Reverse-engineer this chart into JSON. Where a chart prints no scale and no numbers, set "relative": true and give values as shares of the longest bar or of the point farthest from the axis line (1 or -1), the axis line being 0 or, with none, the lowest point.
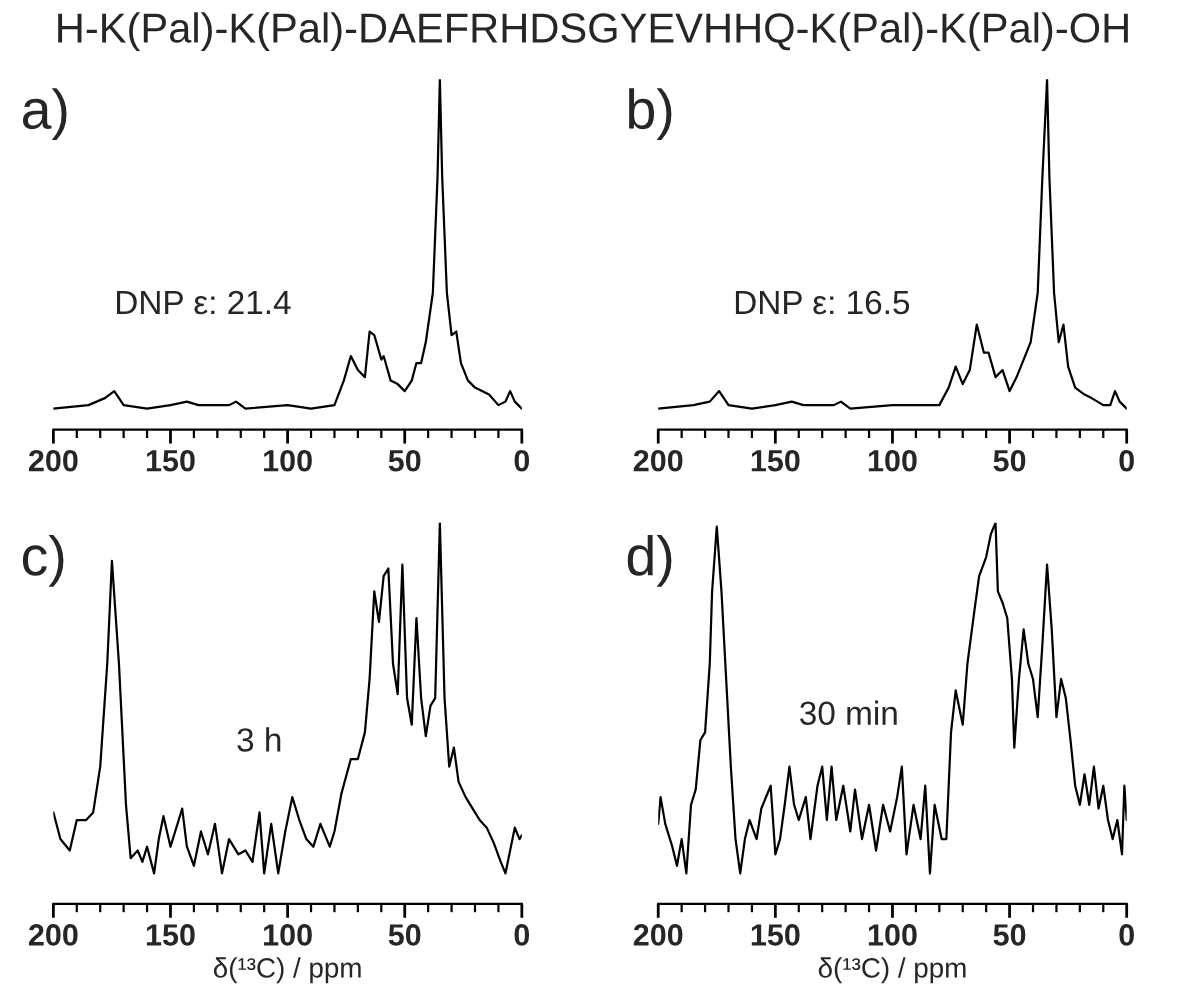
{
  "chart_data": [
    {
      "type": "line",
      "title": "a)",
      "relative": true,
      "annotations": [
        "H-K(Pal)-K(Pal)-DAEFRHDSGYEVHHQ-K(Pal)-K(Pal)-OH",
        "DNP ε: 21.4"
      ],
      "xlim": [
        200,
        0
      ],
      "xticks": [
        0,
        {
          "value": 10,
          "label": null
        },
        {
          "value": 20,
          "label": null
        },
        {
          "value": 30,
          "label": null
        },
        {
          "value": 40,
          "label": null
        },
        50,
        {
          "value": 60,
          "label": null
        },
        {
          "value": 70,
          "label": null
        },
        {
          "value": 80,
          "label": null
        },
        {
          "value": 90,
          "label": null
        },
        100,
        {
          "value": 110,
          "label": null
        },
        {
          "value": 120,
          "label": null
        },
        {
          "value": 130,
          "label": null
        },
        {
          "value": 140,
          "label": null
        },
        150,
        {
          "value": 160,
          "label": null
        },
        {
          "value": 170,
          "label": null
        },
        {
          "value": 180,
          "label": null
        },
        {
          "value": 190,
          "label": null
        },
        200
      ],
      "tick_labels": "x",
      "series": [
        {
          "color": "#000000",
          "x": [
            200,
            185,
            178,
            174,
            170,
            160,
            150,
            143,
            138,
            125,
            122,
            118,
            100,
            90,
            80,
            76,
            73,
            70,
            67,
            65,
            63,
            60,
            59,
            56,
            53,
            50,
            47,
            45,
            43,
            41,
            38,
            36,
            35,
            34,
            32,
            30,
            28,
            26,
            23,
            20,
            17,
            14,
            10,
            7,
            5,
            3,
            0
          ],
          "values": [
            0.06,
            0.07,
            0.09,
            0.11,
            0.07,
            0.06,
            0.07,
            0.08,
            0.07,
            0.07,
            0.08,
            0.06,
            0.07,
            0.06,
            0.07,
            0.14,
            0.21,
            0.17,
            0.15,
            0.28,
            0.27,
            0.2,
            0.21,
            0.14,
            0.13,
            0.11,
            0.14,
            0.19,
            0.19,
            0.25,
            0.39,
            0.72,
            1.0,
            0.72,
            0.39,
            0.27,
            0.28,
            0.19,
            0.14,
            0.12,
            0.11,
            0.1,
            0.07,
            0.08,
            0.11,
            0.08,
            0.06
          ]
        }
      ]
    },
    {
      "type": "line",
      "title": "b)",
      "relative": true,
      "annotations": [
        "DNP ε: 16.5"
      ],
      "xlim": [
        200,
        0
      ],
      "xticks": [
        0,
        {
          "value": 10,
          "label": null
        },
        {
          "value": 20,
          "label": null
        },
        {
          "value": 30,
          "label": null
        },
        {
          "value": 40,
          "label": null
        },
        50,
        {
          "value": 60,
          "label": null
        },
        {
          "value": 70,
          "label": null
        },
        {
          "value": 80,
          "label": null
        },
        {
          "value": 90,
          "label": null
        },
        100,
        {
          "value": 110,
          "label": null
        },
        {
          "value": 120,
          "label": null
        },
        {
          "value": 130,
          "label": null
        },
        {
          "value": 140,
          "label": null
        },
        150,
        {
          "value": 160,
          "label": null
        },
        {
          "value": 170,
          "label": null
        },
        {
          "value": 180,
          "label": null
        },
        {
          "value": 190,
          "label": null
        },
        200
      ],
      "tick_labels": "x",
      "series": [
        {
          "color": "#000000",
          "x": [
            200,
            185,
            178,
            174,
            170,
            160,
            150,
            143,
            138,
            125,
            122,
            118,
            100,
            80,
            76,
            73,
            70,
            67,
            64,
            61,
            59,
            56,
            53,
            50,
            47,
            44,
            41,
            38,
            36,
            34,
            33,
            31,
            29,
            27,
            25,
            22,
            18,
            15,
            10,
            7,
            5,
            3,
            0
          ],
          "values": [
            0.06,
            0.07,
            0.08,
            0.11,
            0.07,
            0.06,
            0.07,
            0.08,
            0.07,
            0.07,
            0.08,
            0.06,
            0.07,
            0.07,
            0.12,
            0.18,
            0.13,
            0.17,
            0.3,
            0.22,
            0.22,
            0.15,
            0.17,
            0.11,
            0.15,
            0.2,
            0.25,
            0.39,
            0.72,
            1.0,
            0.72,
            0.39,
            0.25,
            0.3,
            0.18,
            0.12,
            0.1,
            0.09,
            0.07,
            0.07,
            0.11,
            0.08,
            0.06
          ]
        }
      ]
    },
    {
      "type": "line",
      "title": "c)",
      "relative": true,
      "xlabel": "δ(¹³C) / ppm",
      "annotations": [
        "3 h"
      ],
      "xlim": [
        200,
        0
      ],
      "xticks": [
        0,
        {
          "value": 10,
          "label": null
        },
        {
          "value": 20,
          "label": null
        },
        {
          "value": 30,
          "label": null
        },
        {
          "value": 40,
          "label": null
        },
        50,
        {
          "value": 60,
          "label": null
        },
        {
          "value": 70,
          "label": null
        },
        {
          "value": 80,
          "label": null
        },
        {
          "value": 90,
          "label": null
        },
        100,
        {
          "value": 110,
          "label": null
        },
        {
          "value": 120,
          "label": null
        },
        {
          "value": 130,
          "label": null
        },
        {
          "value": 140,
          "label": null
        },
        150,
        {
          "value": 160,
          "label": null
        },
        {
          "value": 170,
          "label": null
        },
        {
          "value": 180,
          "label": null
        },
        {
          "value": 190,
          "label": null
        },
        200
      ],
      "tick_labels": "x",
      "series": [
        {
          "color": "#000000",
          "x": [
            200,
            197,
            193,
            190,
            186,
            183,
            180,
            177,
            175,
            172,
            169,
            167,
            164,
            162,
            160,
            157,
            155,
            153,
            150,
            148,
            145,
            143,
            140,
            137,
            134,
            131,
            128,
            125,
            121,
            118,
            115,
            112,
            110,
            107,
            104,
            101,
            98,
            95,
            92,
            89,
            86,
            82,
            80,
            77,
            73,
            70,
            67,
            65,
            63,
            61,
            59,
            57,
            55,
            53,
            51,
            49,
            47,
            45,
            43,
            41,
            39,
            37,
            35,
            33,
            31,
            29,
            27,
            24,
            21,
            18,
            15,
            12,
            9,
            7,
            5,
            3,
            1,
            0
          ],
          "values": [
            0.24,
            0.17,
            0.14,
            0.22,
            0.22,
            0.24,
            0.36,
            0.63,
            0.9,
            0.63,
            0.26,
            0.12,
            0.14,
            0.11,
            0.15,
            0.08,
            0.17,
            0.23,
            0.15,
            0.19,
            0.25,
            0.15,
            0.1,
            0.19,
            0.13,
            0.21,
            0.08,
            0.17,
            0.13,
            0.14,
            0.11,
            0.24,
            0.08,
            0.21,
            0.08,
            0.19,
            0.28,
            0.22,
            0.17,
            0.15,
            0.21,
            0.15,
            0.19,
            0.29,
            0.38,
            0.38,
            0.45,
            0.59,
            0.82,
            0.74,
            0.86,
            0.88,
            0.63,
            0.55,
            0.89,
            0.54,
            0.47,
            0.75,
            0.54,
            0.44,
            0.52,
            0.54,
            1.0,
            0.54,
            0.36,
            0.41,
            0.32,
            0.28,
            0.25,
            0.22,
            0.2,
            0.16,
            0.11,
            0.08,
            0.14,
            0.2,
            0.17,
            0.18
          ]
        }
      ]
    },
    {
      "type": "line",
      "title": "d)",
      "relative": true,
      "xlabel": "δ(¹³C) / ppm",
      "annotations": [
        "30 min"
      ],
      "xlim": [
        200,
        0
      ],
      "xticks": [
        0,
        {
          "value": 10,
          "label": null
        },
        {
          "value": 20,
          "label": null
        },
        {
          "value": 30,
          "label": null
        },
        {
          "value": 40,
          "label": null
        },
        50,
        {
          "value": 60,
          "label": null
        },
        {
          "value": 70,
          "label": null
        },
        {
          "value": 80,
          "label": null
        },
        {
          "value": 90,
          "label": null
        },
        100,
        {
          "value": 110,
          "label": null
        },
        {
          "value": 120,
          "label": null
        },
        {
          "value": 130,
          "label": null
        },
        {
          "value": 140,
          "label": null
        },
        150,
        {
          "value": 160,
          "label": null
        },
        {
          "value": 170,
          "label": null
        },
        {
          "value": 180,
          "label": null
        },
        {
          "value": 190,
          "label": null
        },
        200
      ],
      "tick_labels": "x",
      "series": [
        {
          "color": "#000000",
          "x": [
            200,
            199,
            197,
            194,
            192,
            190,
            188,
            186,
            184,
            182,
            180,
            178,
            177,
            175,
            173,
            171,
            169,
            167,
            165,
            163,
            161,
            158,
            156,
            152,
            150,
            148,
            146,
            144,
            142,
            140,
            137,
            135,
            132,
            130,
            128,
            126,
            124,
            121,
            118,
            116,
            113,
            110,
            107,
            104,
            101,
            98,
            96,
            94,
            91,
            88,
            86,
            84,
            82,
            79,
            77,
            75,
            73,
            70,
            68,
            65,
            63,
            60,
            58,
            56,
            55,
            53,
            51,
            49,
            48,
            46,
            44,
            42,
            40,
            38,
            36,
            34,
            32,
            30,
            28,
            26,
            24,
            22,
            20,
            18,
            16,
            14,
            12,
            10,
            8,
            6,
            4,
            2,
            1,
            0
          ],
          "values": [
            0.21,
            0.28,
            0.21,
            0.15,
            0.1,
            0.17,
            0.08,
            0.26,
            0.3,
            0.43,
            0.45,
            0.63,
            0.82,
            0.99,
            0.82,
            0.59,
            0.36,
            0.17,
            0.08,
            0.17,
            0.22,
            0.17,
            0.25,
            0.31,
            0.13,
            0.17,
            0.26,
            0.36,
            0.26,
            0.22,
            0.28,
            0.17,
            0.31,
            0.36,
            0.22,
            0.36,
            0.22,
            0.31,
            0.19,
            0.3,
            0.17,
            0.26,
            0.14,
            0.26,
            0.19,
            0.28,
            0.36,
            0.13,
            0.26,
            0.17,
            0.31,
            0.08,
            0.26,
            0.17,
            0.17,
            0.45,
            0.56,
            0.47,
            0.63,
            0.77,
            0.86,
            0.91,
            0.97,
            1.0,
            0.82,
            0.79,
            0.75,
            0.59,
            0.41,
            0.59,
            0.72,
            0.63,
            0.59,
            0.49,
            0.68,
            0.89,
            0.72,
            0.49,
            0.59,
            0.54,
            0.43,
            0.31,
            0.26,
            0.34,
            0.26,
            0.36,
            0.25,
            0.31,
            0.22,
            0.17,
            0.22,
            0.13,
            0.31,
            0.22
          ]
        }
      ]
    }
  ]
}
